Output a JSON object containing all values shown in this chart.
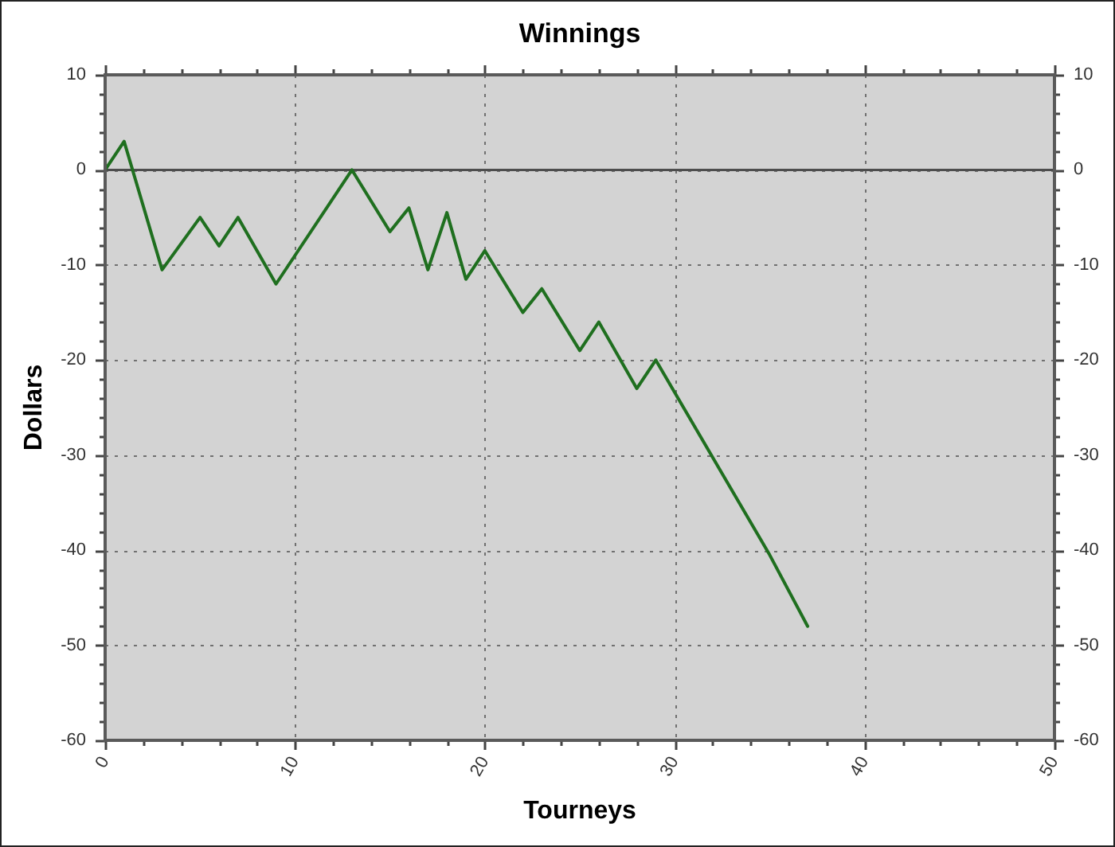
{
  "chart_data": {
    "type": "line",
    "title": "Winnings",
    "xlabel": "Tourneys",
    "ylabel": "Dollars",
    "x": [
      0,
      1,
      3,
      5,
      6,
      7,
      9,
      13,
      15,
      16,
      17,
      18,
      19,
      20,
      22,
      23,
      25,
      26,
      28,
      29,
      35,
      37
    ],
    "series": [
      {
        "color": "#1f6f1f",
        "values": [
          0,
          3,
          -10.5,
          -5,
          -8,
          -5,
          -12,
          0,
          -6.5,
          -4,
          -10.5,
          -4.5,
          -11.5,
          -8.5,
          -15,
          -12.5,
          -19,
          -16,
          -23,
          -20,
          -40.5,
          -48
        ]
      }
    ],
    "xlim": [
      0,
      50
    ],
    "xticks": [
      0,
      {
        "value": 2,
        "label": null
      },
      {
        "value": 4,
        "label": null
      },
      {
        "value": 6,
        "label": null
      },
      {
        "value": 8,
        "label": null
      },
      10,
      {
        "value": 12,
        "label": null
      },
      {
        "value": 14,
        "label": null
      },
      {
        "value": 16,
        "label": null
      },
      {
        "value": 18,
        "label": null
      },
      20,
      {
        "value": 22,
        "label": null
      },
      {
        "value": 24,
        "label": null
      },
      {
        "value": 26,
        "label": null
      },
      {
        "value": 28,
        "label": null
      },
      30,
      {
        "value": 32,
        "label": null
      },
      {
        "value": 34,
        "label": null
      },
      {
        "value": 36,
        "label": null
      },
      {
        "value": 38,
        "label": null
      },
      40,
      {
        "value": 42,
        "label": null
      },
      {
        "value": 44,
        "label": null
      },
      {
        "value": 46,
        "label": null
      },
      {
        "value": 48,
        "label": null
      },
      50
    ],
    "ylim": [
      -60,
      10
    ],
    "yticks": [
      -60,
      {
        "value": -58,
        "label": null
      },
      {
        "value": -56,
        "label": null
      },
      {
        "value": -54,
        "label": null
      },
      {
        "value": -52,
        "label": null
      },
      -50,
      {
        "value": -48,
        "label": null
      },
      {
        "value": -46,
        "label": null
      },
      {
        "value": -44,
        "label": null
      },
      {
        "value": -42,
        "label": null
      },
      -40,
      {
        "value": -38,
        "label": null
      },
      {
        "value": -36,
        "label": null
      },
      {
        "value": -34,
        "label": null
      },
      {
        "value": -32,
        "label": null
      },
      -30,
      {
        "value": -28,
        "label": null
      },
      {
        "value": -26,
        "label": null
      },
      {
        "value": -24,
        "label": null
      },
      {
        "value": -22,
        "label": null
      },
      -20,
      {
        "value": -18,
        "label": null
      },
      {
        "value": -16,
        "label": null
      },
      {
        "value": -14,
        "label": null
      },
      {
        "value": -12,
        "label": null
      },
      -10,
      {
        "value": -8,
        "label": null
      },
      {
        "value": -6,
        "label": null
      },
      {
        "value": -4,
        "label": null
      },
      {
        "value": -2,
        "label": null
      },
      0,
      {
        "value": 2,
        "label": null
      },
      {
        "value": 4,
        "label": null
      },
      {
        "value": 6,
        "label": null
      },
      {
        "value": 8,
        "label": null
      },
      10
    ],
    "y2lim": [
      -60,
      10
    ],
    "y2ticks": [
      -60,
      {
        "value": -58,
        "label": null
      },
      {
        "value": -56,
        "label": null
      },
      {
        "value": -54,
        "label": null
      },
      {
        "value": -52,
        "label": null
      },
      -50,
      {
        "value": -48,
        "label": null
      },
      {
        "value": -46,
        "label": null
      },
      {
        "value": -44,
        "label": null
      },
      {
        "value": -42,
        "label": null
      },
      -40,
      {
        "value": -38,
        "label": null
      },
      {
        "value": -36,
        "label": null
      },
      {
        "value": -34,
        "label": null
      },
      {
        "value": -32,
        "label": null
      },
      -30,
      {
        "value": -28,
        "label": null
      },
      {
        "value": -26,
        "label": null
      },
      {
        "value": -24,
        "label": null
      },
      {
        "value": -22,
        "label": null
      },
      -20,
      {
        "value": -18,
        "label": null
      },
      {
        "value": -16,
        "label": null
      },
      {
        "value": -14,
        "label": null
      },
      {
        "value": -12,
        "label": null
      },
      -10,
      {
        "value": -8,
        "label": null
      },
      {
        "value": -6,
        "label": null
      },
      {
        "value": -4,
        "label": null
      },
      {
        "value": -2,
        "label": null
      },
      0,
      {
        "value": 2,
        "label": null
      },
      {
        "value": 4,
        "label": null
      },
      {
        "value": 6,
        "label": null
      },
      {
        "value": 8,
        "label": null
      },
      10
    ],
    "grid": true,
    "marker": "none",
    "line_style": "solid",
    "ref_lines": [
      {
        "axis": "y",
        "value": 0,
        "color": "#4d4d4d"
      }
    ]
  }
}
